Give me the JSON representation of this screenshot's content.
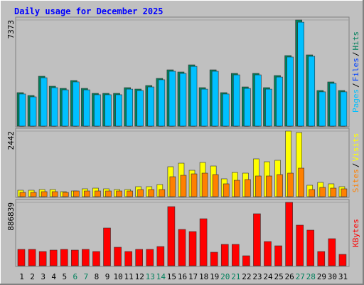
{
  "chart_data": [
    {
      "type": "bar",
      "title": "Daily usage for December 2025",
      "ylim": [
        0,
        7373
      ],
      "yticks": [
        7373
      ],
      "legend_separator": "/",
      "series": [
        {
          "name": "Pages",
          "color": "#00c0ff",
          "values": [
            2230,
            2030,
            3360,
            2670,
            2520,
            3070,
            2520,
            2180,
            2180,
            2180,
            2570,
            2470,
            2720,
            3220,
            3810,
            3660,
            4150,
            2570,
            3810,
            2230,
            3560,
            2620,
            3560,
            2570,
            3410,
            4800,
            7220,
            4850,
            2380,
            2970,
            2380
          ]
        },
        {
          "name": "Files",
          "color": "#0040ff",
          "values": [
            1730,
            1680,
            1780,
            1730,
            1700,
            1780,
            1730,
            1680,
            1680,
            1680,
            1730,
            1730,
            1780,
            1830,
            2080,
            2030,
            2130,
            1830,
            2080,
            1730,
            1980,
            1780,
            1980,
            1780,
            1930,
            4060,
            6880,
            4550,
            1730,
            1880,
            1730
          ]
        },
        {
          "name": "Hits",
          "color": "#00805c",
          "values": [
            2326,
            2128,
            3464,
            2771,
            2622,
            3167,
            2622,
            2276,
            2276,
            2276,
            2672,
            2573,
            2820,
            3315,
            3909,
            3760,
            4255,
            2672,
            3909,
            2326,
            3662,
            2721,
            3662,
            2672,
            3513,
            4899,
            7373,
            4948,
            2474,
            3068,
            2474
          ]
        }
      ]
    },
    {
      "type": "bar",
      "ylim": [
        0,
        2442
      ],
      "yticks": [
        2442
      ],
      "legend_separator": "/",
      "series": [
        {
          "name": "Sites",
          "color": "#ff8000",
          "values": [
            159,
            159,
            186,
            186,
            159,
            212,
            212,
            212,
            212,
            212,
            212,
            265,
            265,
            265,
            743,
            796,
            849,
            876,
            823,
            478,
            610,
            637,
            770,
            770,
            823,
            876,
            1062,
            265,
            345,
            318,
            292
          ]
        },
        {
          "name": "Visits",
          "color": "#ffff00",
          "values": [
            239,
            239,
            265,
            265,
            186,
            212,
            292,
            318,
            292,
            265,
            265,
            372,
            372,
            451,
            1115,
            1247,
            982,
            1274,
            1141,
            664,
            902,
            876,
            1407,
            1300,
            1354,
            2442,
            2389,
            425,
            531,
            478,
            372
          ]
        }
      ]
    },
    {
      "type": "bar",
      "ylim": [
        0,
        886839
      ],
      "yticks": [
        886839
      ],
      "categories": [
        "1",
        "2",
        "3",
        "4",
        "5",
        "6",
        "7",
        "8",
        "9",
        "10",
        "11",
        "12",
        "13",
        "14",
        "15",
        "16",
        "17",
        "18",
        "19",
        "20",
        "21",
        "22",
        "23",
        "24",
        "25",
        "26",
        "27",
        "28",
        "29",
        "30",
        "31"
      ],
      "category_colors": [
        "#000000",
        "#000000",
        "#000000",
        "#000000",
        "#000000",
        "#00805c",
        "#00805c",
        "#000000",
        "#000000",
        "#000000",
        "#000000",
        "#000000",
        "#00805c",
        "#00805c",
        "#000000",
        "#000000",
        "#000000",
        "#000000",
        "#000000",
        "#00805c",
        "#00805c",
        "#000000",
        "#000000",
        "#000000",
        "#000000",
        "#000000",
        "#00805c",
        "#00805c",
        "#000000",
        "#000000",
        "#000000"
      ],
      "series": [
        {
          "name": "KBytes",
          "color": "#ff0000",
          "values": [
            229172,
            229172,
            199280,
            219208,
            229172,
            219208,
            229172,
            199280,
            528092,
            259064,
            199280,
            229172,
            229172,
            269028,
            827012,
            508164,
            478272,
            657624,
            189316,
            298920,
            298920,
            139496,
            727372,
            338776,
            278992,
            886839,
            567948,
            498200,
            199280,
            378632,
            159424
          ]
        }
      ]
    }
  ]
}
